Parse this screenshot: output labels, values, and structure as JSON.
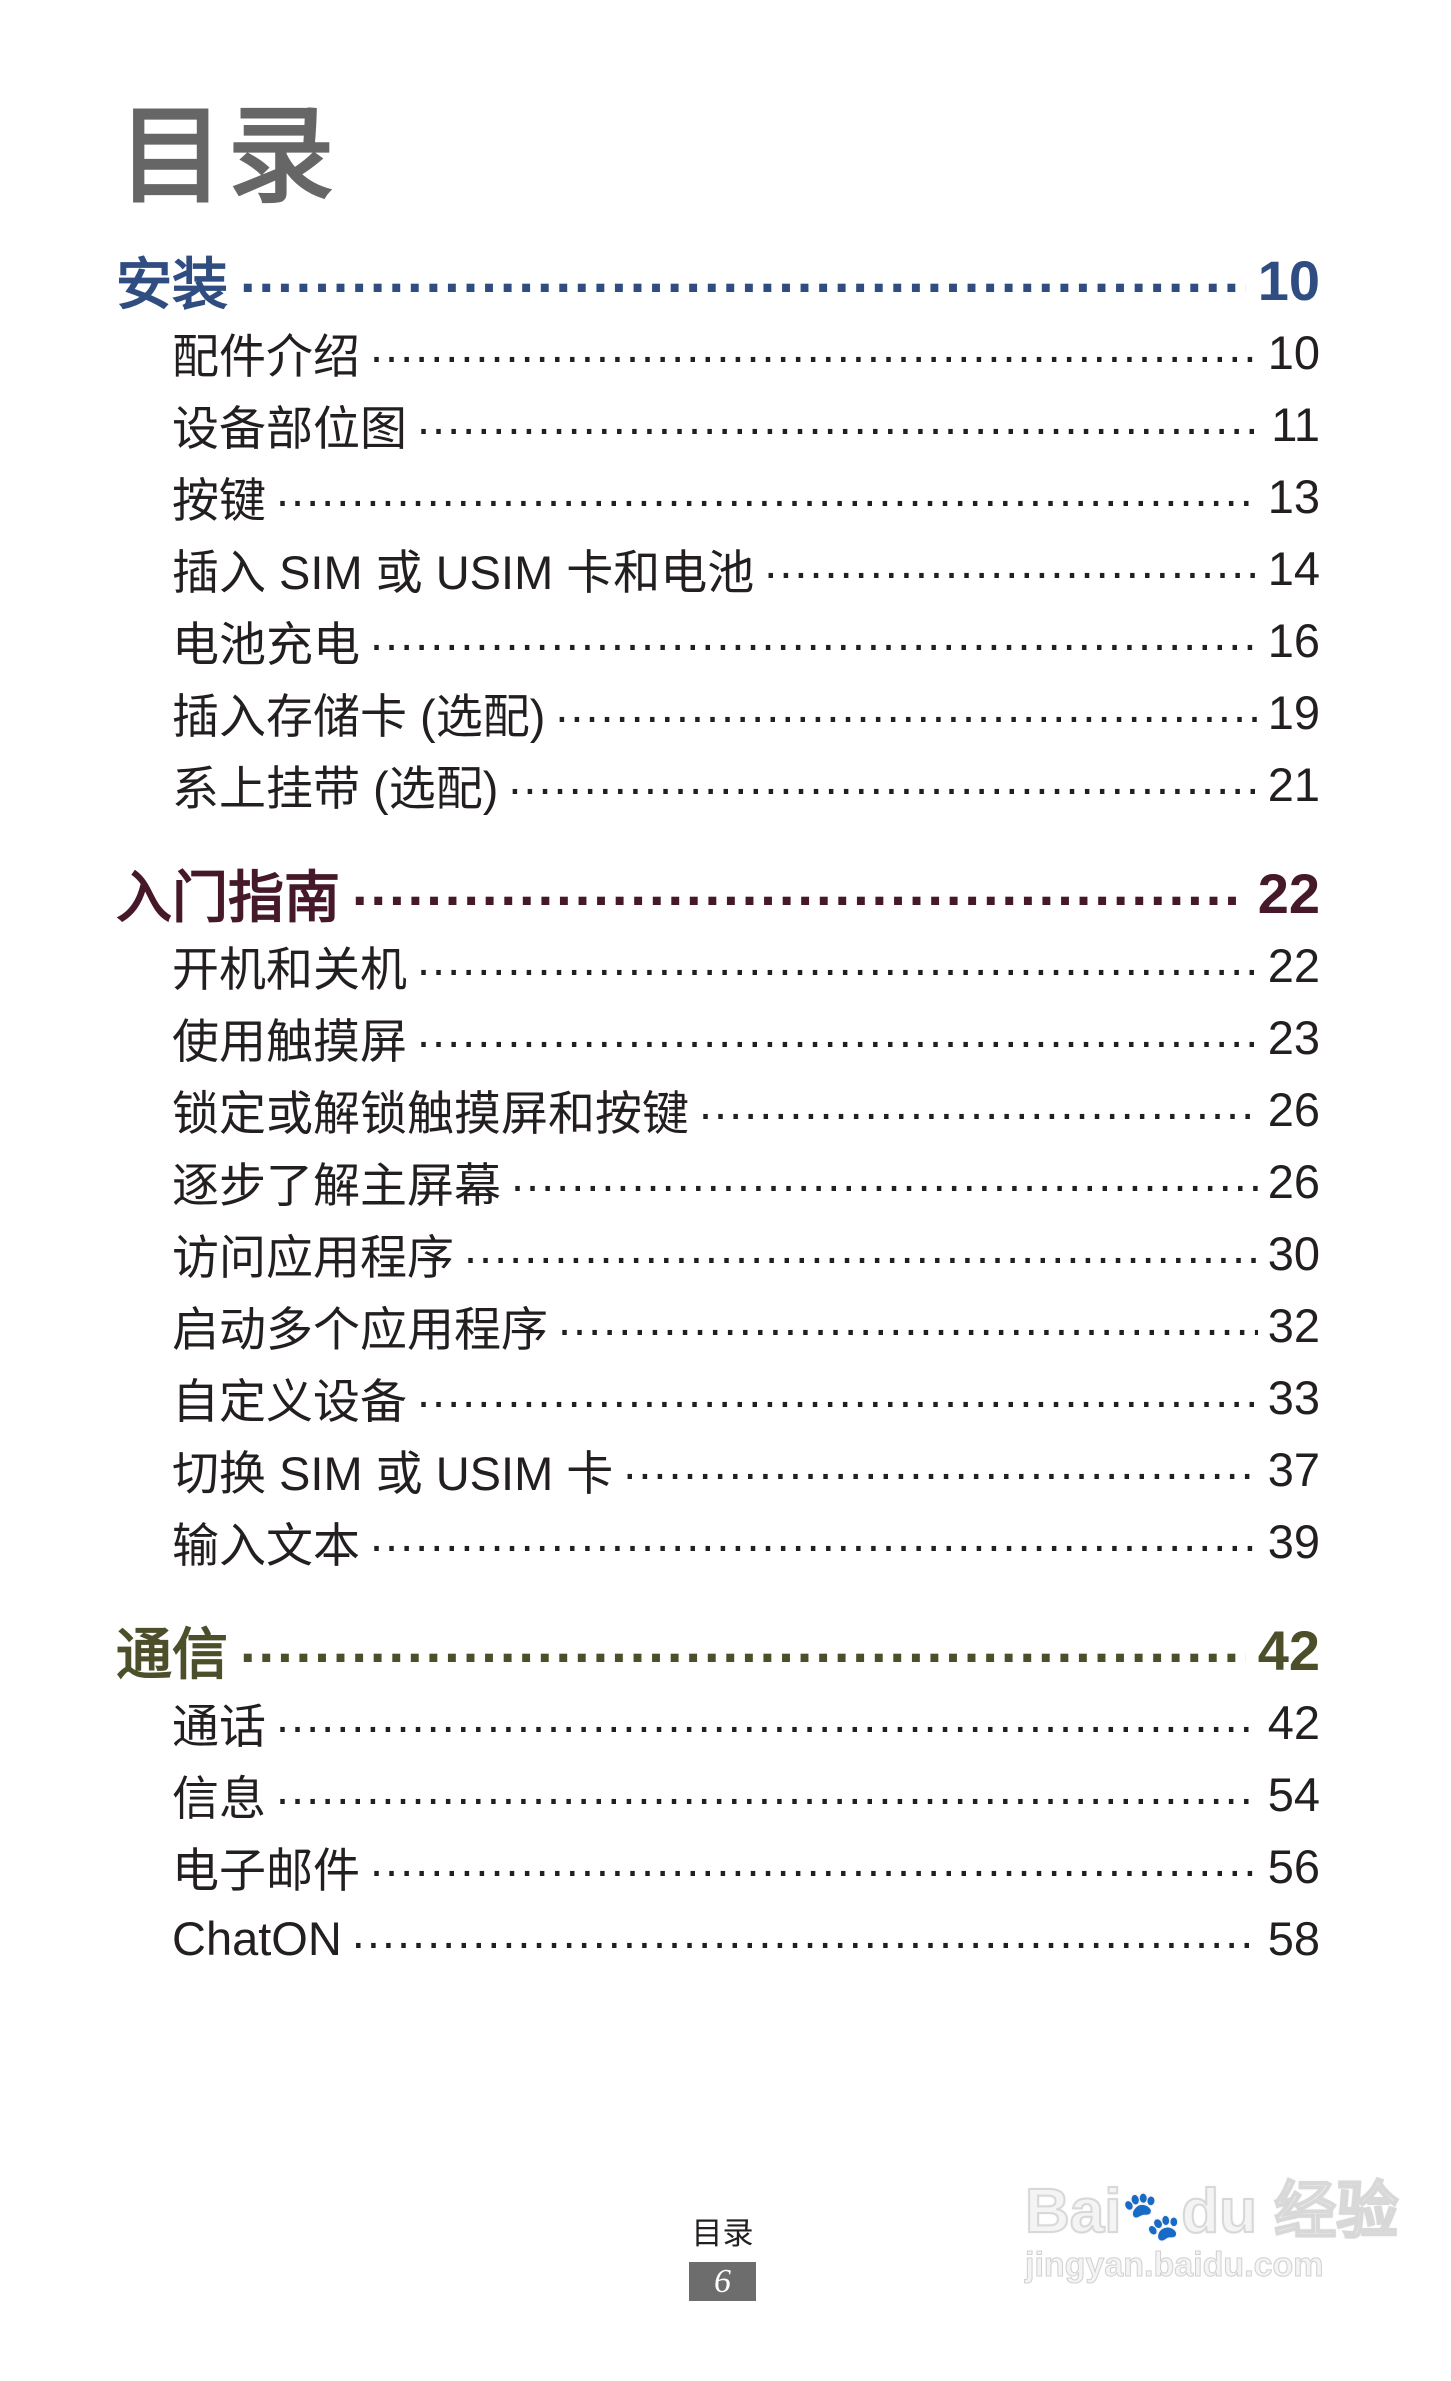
{
  "title": "目录",
  "colors": {
    "section_1": "#2f4d80",
    "section_2": "#45192a",
    "section_3": "#4d4f2a",
    "title": "#666666"
  },
  "sections": [
    {
      "label": "安装",
      "page": "10",
      "items": [
        {
          "label": "配件介绍",
          "page": "10"
        },
        {
          "label": "设备部位图",
          "page": "11"
        },
        {
          "label": "按键",
          "page": "13"
        },
        {
          "label": "插入 SIM 或 USIM 卡和电池",
          "page": "14"
        },
        {
          "label": "电池充电",
          "page": "16"
        },
        {
          "label": "插入存储卡 (选配)",
          "page": "19"
        },
        {
          "label": "系上挂带 (选配)",
          "page": "21"
        }
      ]
    },
    {
      "label": "入门指南",
      "page": "22",
      "items": [
        {
          "label": "开机和关机",
          "page": "22"
        },
        {
          "label": "使用触摸屏",
          "page": "23"
        },
        {
          "label": "锁定或解锁触摸屏和按键",
          "page": "26"
        },
        {
          "label": "逐步了解主屏幕",
          "page": "26"
        },
        {
          "label": "访问应用程序",
          "page": "30"
        },
        {
          "label": "启动多个应用程序",
          "page": "32"
        },
        {
          "label": "自定义设备",
          "page": "33"
        },
        {
          "label": "切换 SIM 或 USIM 卡",
          "page": "37"
        },
        {
          "label": "输入文本",
          "page": "39"
        }
      ]
    },
    {
      "label": "通信",
      "page": "42",
      "items": [
        {
          "label": "通话",
          "page": "42"
        },
        {
          "label": "信息",
          "page": "54"
        },
        {
          "label": "电子邮件",
          "page": "56"
        },
        {
          "label": "ChatON",
          "page": "58"
        }
      ]
    }
  ],
  "footer": {
    "label": "目录",
    "page": "6"
  },
  "watermark": {
    "logo": "Bai du 经验",
    "url": "jingyan.baidu.com"
  }
}
